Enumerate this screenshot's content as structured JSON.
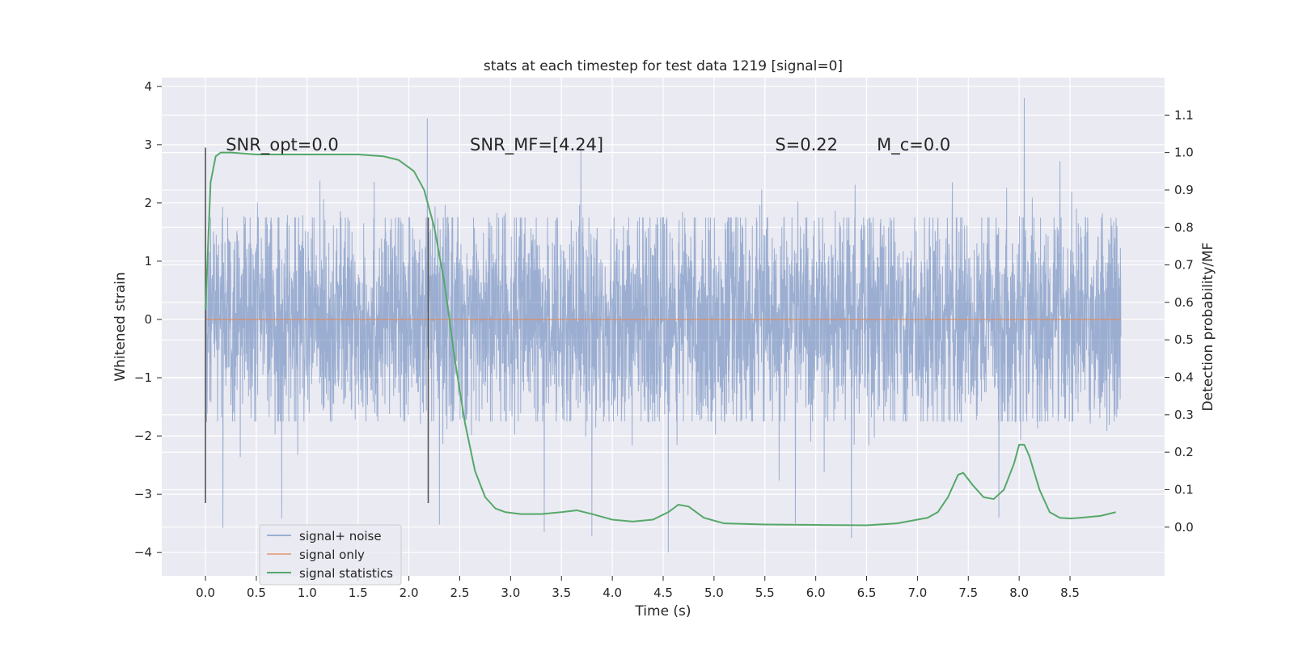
{
  "chart_data": {
    "type": "line",
    "title": "stats at each timestep for test data 1219 [signal=0]",
    "xlabel": "Time (s)",
    "ylabel": "Whitened strain",
    "y2label": "Detection probability/MF",
    "xlim": [
      -0.43,
      9.43
    ],
    "ylim": [
      -4.4,
      4.15
    ],
    "y2lim": [
      -0.13,
      1.2
    ],
    "xticks": [
      "0.0",
      "0.5",
      "1.0",
      "1.5",
      "2.0",
      "2.5",
      "3.0",
      "3.5",
      "4.0",
      "4.5",
      "5.0",
      "5.5",
      "6.0",
      "6.5",
      "7.0",
      "7.5",
      "8.0",
      "8.5"
    ],
    "yticks": [
      "−4",
      "−3",
      "−2",
      "−1",
      "0",
      "1",
      "2",
      "3",
      "4"
    ],
    "y2ticks": [
      "0.0",
      "0.1",
      "0.2",
      "0.3",
      "0.4",
      "0.5",
      "0.6",
      "0.7",
      "0.8",
      "0.9",
      "1.0",
      "1.1"
    ],
    "grid": true,
    "legend_position": "lower-left",
    "annotations": [
      {
        "text": "SNR_opt=0.0",
        "x": 0.2,
        "y": 3.0
      },
      {
        "text": "SNR_MF=[4.24]",
        "x": 2.6,
        "y": 3.0
      },
      {
        "text": "S=0.22",
        "x": 5.6,
        "y": 3.0
      },
      {
        "text": "M_c=0.0",
        "x": 6.6,
        "y": 3.0
      }
    ],
    "vlines": [
      {
        "x": 0.0,
        "ymin": -3.15,
        "ymax": 2.95
      },
      {
        "x": 2.19,
        "ymin": -3.15,
        "ymax": 1.75
      }
    ],
    "series": [
      {
        "name": "signal+ noise",
        "color": "#4c72b0",
        "axis": "left",
        "kind": "noise",
        "x_range": [
          0.0,
          9.0
        ],
        "amplitude_band": [
          -1.75,
          1.75
        ],
        "extremes": [
          {
            "x": 0.17,
            "y": -3.58
          },
          {
            "x": 0.75,
            "y": -3.42
          },
          {
            "x": 2.18,
            "y": 3.45
          },
          {
            "x": 2.3,
            "y": -3.52
          },
          {
            "x": 3.33,
            "y": -3.65
          },
          {
            "x": 3.8,
            "y": -3.72
          },
          {
            "x": 4.55,
            "y": -4.0
          },
          {
            "x": 5.8,
            "y": -3.5
          },
          {
            "x": 6.35,
            "y": -3.75
          },
          {
            "x": 7.8,
            "y": -3.4
          },
          {
            "x": 8.05,
            "y": 3.8
          }
        ]
      },
      {
        "name": "signal only",
        "color": "#dd8452",
        "axis": "left",
        "x": [
          0.0,
          9.0
        ],
        "y": [
          0.0,
          0.0
        ]
      },
      {
        "name": "signal statistics",
        "color": "#55a868",
        "axis": "right",
        "x": [
          0.0,
          0.05,
          0.1,
          0.15,
          0.25,
          0.5,
          1.0,
          1.5,
          1.75,
          1.9,
          2.05,
          2.15,
          2.25,
          2.35,
          2.45,
          2.55,
          2.65,
          2.75,
          2.85,
          2.95,
          3.1,
          3.3,
          3.5,
          3.65,
          3.8,
          4.0,
          4.2,
          4.4,
          4.55,
          4.65,
          4.75,
          4.9,
          5.1,
          5.5,
          6.0,
          6.5,
          6.8,
          7.0,
          7.1,
          7.2,
          7.3,
          7.4,
          7.45,
          7.55,
          7.65,
          7.75,
          7.85,
          7.95,
          8.0,
          8.05,
          8.1,
          8.2,
          8.3,
          8.4,
          8.5,
          8.6,
          8.8,
          8.95
        ],
        "y": [
          0.58,
          0.92,
          0.99,
          1.0,
          1.0,
          0.995,
          0.995,
          0.995,
          0.99,
          0.98,
          0.95,
          0.9,
          0.8,
          0.65,
          0.45,
          0.28,
          0.15,
          0.08,
          0.05,
          0.04,
          0.035,
          0.035,
          0.04,
          0.045,
          0.035,
          0.02,
          0.015,
          0.02,
          0.04,
          0.06,
          0.055,
          0.025,
          0.01,
          0.007,
          0.006,
          0.005,
          0.01,
          0.02,
          0.025,
          0.04,
          0.08,
          0.14,
          0.145,
          0.11,
          0.08,
          0.075,
          0.1,
          0.17,
          0.22,
          0.22,
          0.19,
          0.1,
          0.04,
          0.025,
          0.023,
          0.025,
          0.03,
          0.04
        ]
      }
    ]
  }
}
